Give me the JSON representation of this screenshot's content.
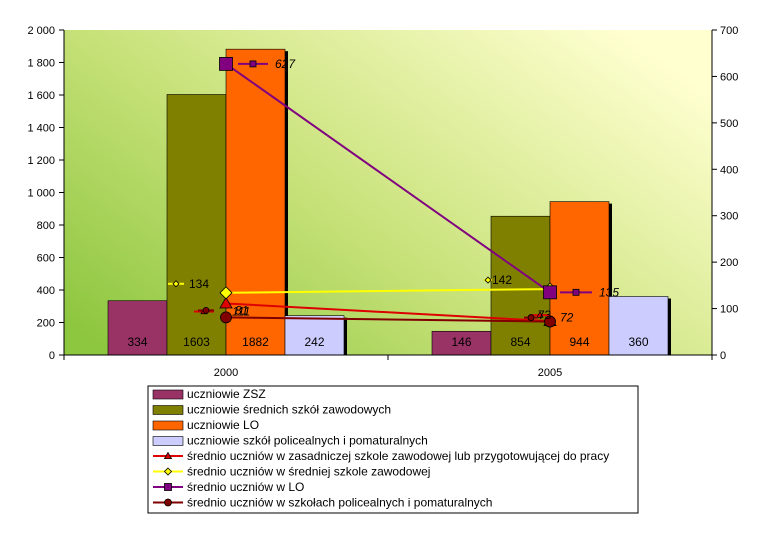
{
  "chart_data": {
    "type": "bar",
    "categories": [
      "2000",
      "2005"
    ],
    "y_left": {
      "min": 0,
      "max": 2000,
      "step": 200,
      "tick_labels": [
        "0",
        "200",
        "400",
        "600",
        "800",
        "1 000",
        "1 200",
        "1 400",
        "1 600",
        "1 800",
        "2 000"
      ]
    },
    "y_right": {
      "min": 0,
      "max": 700,
      "step": 100,
      "tick_labels": [
        "0",
        "100",
        "200",
        "300",
        "400",
        "500",
        "600",
        "700"
      ]
    },
    "bar_series": [
      {
        "name": "uczniowie ZSZ",
        "color": "#993366",
        "values": [
          334,
          146
        ],
        "labels": [
          "334",
          "146"
        ]
      },
      {
        "name": "uczniowie średnich szkół zawodowych",
        "color": "#808000",
        "values": [
          1603,
          854
        ],
        "labels": [
          "1603",
          "854"
        ]
      },
      {
        "name": "uczniowie LO",
        "color": "#FF6600",
        "values": [
          1882,
          944
        ],
        "labels": [
          "1882",
          "944"
        ]
      },
      {
        "name": "uczniowie szkół policealnych i pomaturalnych",
        "color": "#CCCCFF",
        "values": [
          242,
          360
        ],
        "labels": [
          "242",
          "360"
        ]
      }
    ],
    "line_series": [
      {
        "name": "średnio uczniów w zasadniczej szkole zawodowej lub przygotowującej do pracy",
        "color": "#DD0000",
        "marker": "triangle",
        "values": [
          111,
          73
        ],
        "labels": [
          "111",
          "73"
        ]
      },
      {
        "name": "średnio uczniów w średniej szkole zawodowej",
        "color": "#FFFF00",
        "marker": "diamond",
        "values": [
          134,
          142
        ],
        "labels": [
          "134",
          "142"
        ]
      },
      {
        "name": "średnio uczniów w LO",
        "color": "#800080",
        "marker": "square",
        "values": [
          627,
          135
        ],
        "labels": [
          "627",
          "135"
        ]
      },
      {
        "name": "średnio uczniów w szkołach policealnych i pomaturalnych",
        "color": "#800000",
        "marker": "circle",
        "values": [
          81,
          72
        ],
        "labels": [
          "81",
          "72"
        ]
      }
    ],
    "plot_background": [
      "#8DC63F",
      "#FFFFD0"
    ],
    "legend_position": "bottom",
    "grid": false
  }
}
